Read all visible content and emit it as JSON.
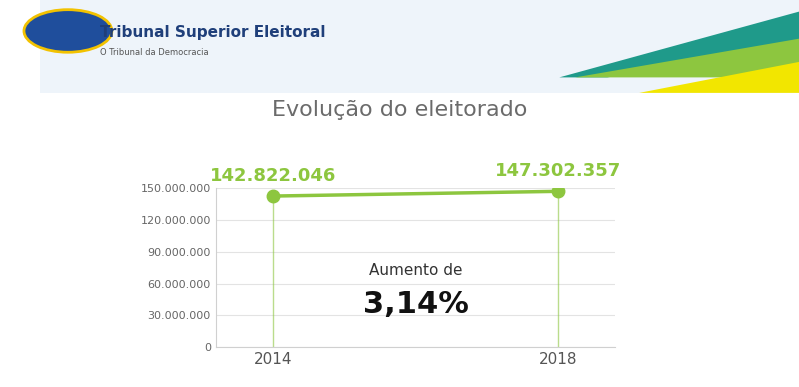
{
  "chart_data": {
    "type": "line",
    "header": "Tribunal Superior Eleitoral",
    "subtitle": "O Tribunal da Democracia",
    "title": "Evolução do eleitorado",
    "categories": [
      "2014",
      "2018"
    ],
    "values": [
      142822046,
      147302357
    ],
    "value_labels": [
      "142.822.046",
      "147.302.357"
    ],
    "data_labels": true,
    "color": "#8dc63f",
    "marker": "o",
    "line_style": "solid",
    "ylim": [
      0,
      150000000
    ],
    "yticks": [
      0,
      {
        "value": 30000000,
        "label": "30.000.000"
      },
      {
        "value": 60000000,
        "label": "60.000.000"
      },
      {
        "value": 90000000,
        "label": "90.000.000"
      },
      {
        "value": 120000000,
        "label": "120.000.000"
      },
      {
        "value": 150000000,
        "label": "150.000.000"
      }
    ],
    "grid": true,
    "annotations": [
      "Aumento de",
      "3,14%"
    ]
  }
}
